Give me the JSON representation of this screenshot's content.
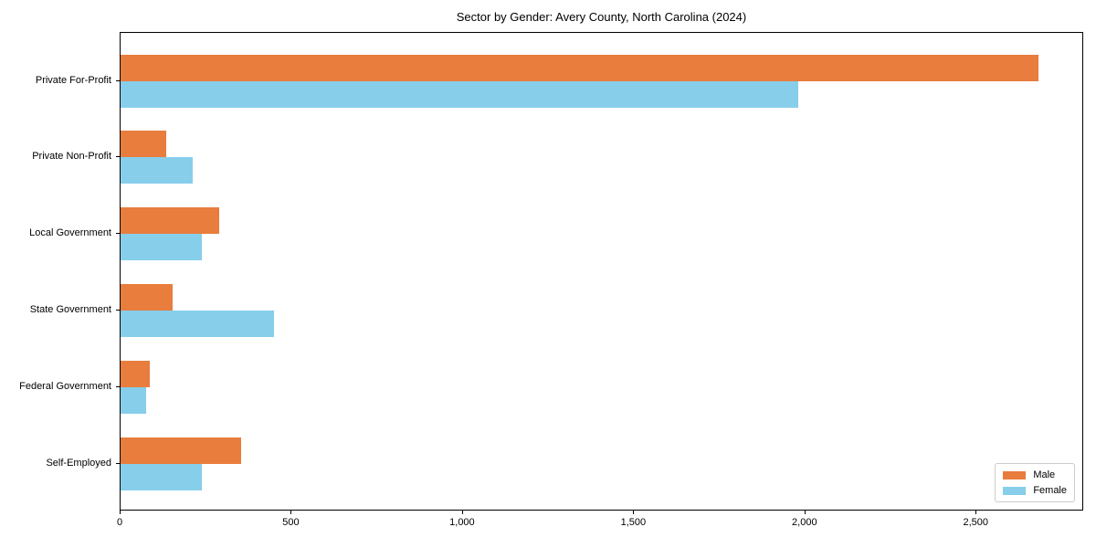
{
  "chart_data": {
    "type": "bar",
    "orientation": "horizontal",
    "title": "Sector by Gender: Avery County, North Carolina (2024)",
    "xlabel": "",
    "ylabel": "",
    "categories": [
      "Private For-Profit",
      "Private Non-Profit",
      "Local Government",
      "State Government",
      "Federal Government",
      "Self-Employed"
    ],
    "series": [
      {
        "name": "Male",
        "color": "#e87d3e",
        "values": [
          2680,
          133,
          288,
          152,
          85,
          352
        ]
      },
      {
        "name": "Female",
        "color": "#87ceeb",
        "values": [
          1980,
          212,
          238,
          449,
          75,
          238
        ]
      }
    ],
    "xlim": [
      0,
      2814
    ],
    "xticks": [
      0,
      500,
      1000,
      1500,
      2000,
      2500
    ],
    "xtick_labels": [
      "0",
      "500",
      "1,000",
      "1,500",
      "2,000",
      "2,500"
    ],
    "grid": false,
    "legend_position": "lower right",
    "spine_color": "#000000",
    "background_color": "#ffffff"
  }
}
